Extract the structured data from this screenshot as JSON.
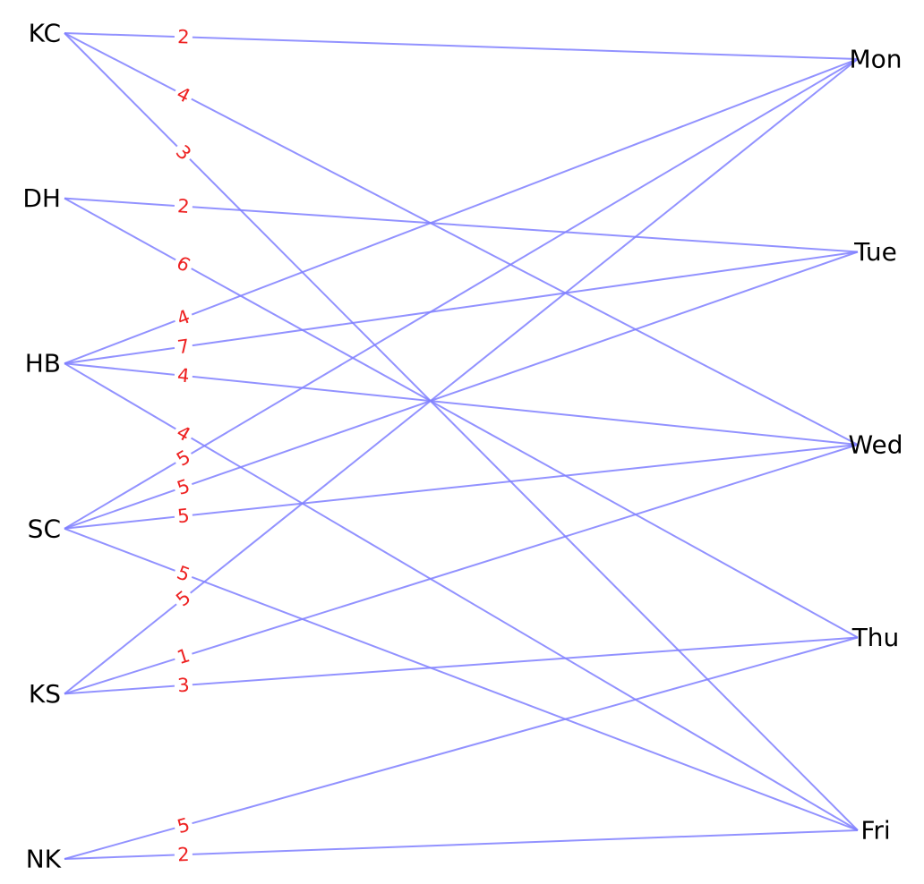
{
  "graph": {
    "type": "bipartite",
    "colors": {
      "edge": "#7f7fff",
      "edge_label": "#ee2222",
      "node_label": "#000000",
      "background": "#ffffff"
    },
    "left_nodes": [
      "KC",
      "DH",
      "HB",
      "SC",
      "KS",
      "NK"
    ],
    "right_nodes": [
      "Mon",
      "Tue",
      "Wed",
      "Thu",
      "Fri"
    ],
    "edges": [
      {
        "source": "KC",
        "target": "Mon",
        "weight": "2"
      },
      {
        "source": "KC",
        "target": "Wed",
        "weight": "4"
      },
      {
        "source": "KC",
        "target": "Fri",
        "weight": "3"
      },
      {
        "source": "DH",
        "target": "Tue",
        "weight": "2"
      },
      {
        "source": "DH",
        "target": "Thu",
        "weight": "6"
      },
      {
        "source": "HB",
        "target": "Mon",
        "weight": "4"
      },
      {
        "source": "HB",
        "target": "Tue",
        "weight": "7"
      },
      {
        "source": "HB",
        "target": "Wed",
        "weight": "4"
      },
      {
        "source": "HB",
        "target": "Fri",
        "weight": "4"
      },
      {
        "source": "SC",
        "target": "Mon",
        "weight": "5"
      },
      {
        "source": "SC",
        "target": "Tue",
        "weight": "5"
      },
      {
        "source": "SC",
        "target": "Wed",
        "weight": "5"
      },
      {
        "source": "SC",
        "target": "Fri",
        "weight": "5"
      },
      {
        "source": "KS",
        "target": "Mon",
        "weight": "5"
      },
      {
        "source": "KS",
        "target": "Wed",
        "weight": "1"
      },
      {
        "source": "KS",
        "target": "Thu",
        "weight": "3"
      },
      {
        "source": "NK",
        "target": "Thu",
        "weight": "5"
      },
      {
        "source": "NK",
        "target": "Fri",
        "weight": "2"
      }
    ]
  }
}
